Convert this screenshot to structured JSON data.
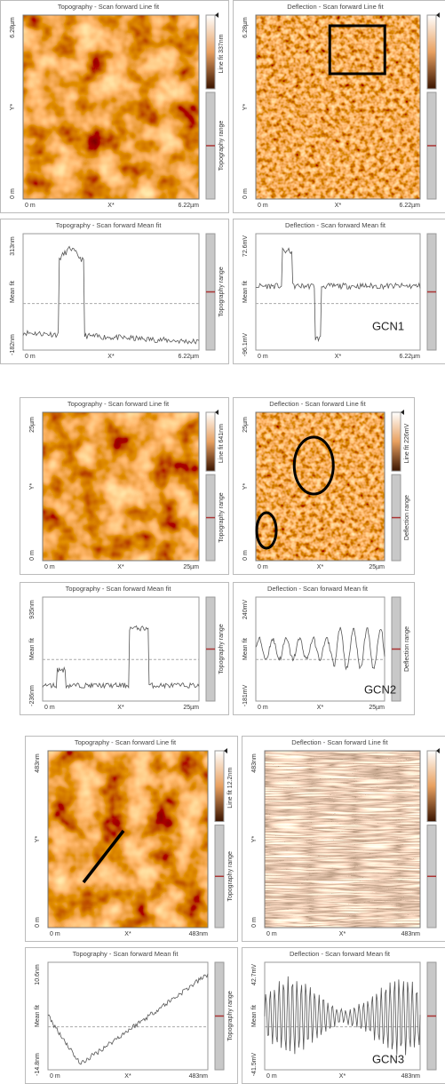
{
  "panels": [
    {
      "label": "GCN1",
      "topo_image": {
        "title": "Topography - Scan forward   Line fit",
        "y_max": "6.28µm",
        "y_axis": "Y*",
        "y_min": "0 m",
        "x_min": "0 m",
        "x_axis": "X*",
        "x_max": "6.22µm",
        "colorbar": "Line fit 337nm",
        "range": "Topography range"
      },
      "defl_image": {
        "title": "Deflection - Scan forward   Line fit",
        "y_max": "6.28µm",
        "y_axis": "Y*",
        "y_min": "0 m",
        "x_min": "0 m",
        "x_axis": "X*",
        "x_max": "6.22µm"
      },
      "topo_profile": {
        "title": "Topography - Scan forward   Mean fit",
        "y_max": "313nm",
        "y_axis": "Mean fit",
        "y_min": "-182nm",
        "x_min": "0 m",
        "x_axis": "X*",
        "x_max": "6.22µm",
        "range": "Topography range"
      },
      "defl_profile": {
        "title": "Deflection - Scan forward   Mean fit",
        "y_max": "72.6mV",
        "y_axis": "Mean fit",
        "y_min": "-96.1mV",
        "x_min": "0 m",
        "x_axis": "X*",
        "x_max": "6.22µm"
      }
    },
    {
      "label": "GCN2",
      "topo_image": {
        "title": "Topography - Scan forward   Line fit",
        "y_max": "25µm",
        "y_axis": "Y*",
        "y_min": "0 m",
        "x_min": "0 m",
        "x_axis": "X*",
        "x_max": "25µm",
        "colorbar": "Line fit 641nm",
        "range": "Topography range"
      },
      "defl_image": {
        "title": "Deflection - Scan forward   Line fit",
        "y_max": "25µm",
        "y_axis": "Y*",
        "y_min": "0 m",
        "x_min": "0 m",
        "x_axis": "X*",
        "x_max": "25µm",
        "colorbar": "Line fit 226mV",
        "range": "Deflection range"
      },
      "topo_profile": {
        "title": "Topography - Scan forward   Mean fit",
        "y_max": "935nm",
        "y_axis": "Mean fit",
        "y_min": "-236nm",
        "x_min": "0 m",
        "x_axis": "X*",
        "x_max": "25µm",
        "range": "Topography range"
      },
      "defl_profile": {
        "title": "Deflection - Scan forward   Mean fit",
        "y_max": "240mV",
        "y_axis": "Mean fit",
        "y_min": "-181mV",
        "x_min": "0 m",
        "x_axis": "X*",
        "x_max": "25µm",
        "range": "Deflection range"
      }
    },
    {
      "label": "GCN3",
      "topo_image": {
        "title": "Topography - Scan forward   Line fit",
        "y_max": "483nm",
        "y_axis": "Y*",
        "y_min": "0 m",
        "x_min": "0 m",
        "x_axis": "X*",
        "x_max": "483nm",
        "colorbar": "Line fit 12.2nm",
        "range": "Topography range"
      },
      "defl_image": {
        "title": "Deflection - Scan forward   Line fit",
        "y_max": "483nm",
        "y_axis": "Y*",
        "y_min": "0 m",
        "x_min": "0 m",
        "x_axis": "X*",
        "x_max": "483nm"
      },
      "topo_profile": {
        "title": "Topography - Scan forward   Mean fit",
        "y_max": "10.6nm",
        "y_axis": "Mean fit",
        "y_min": "-14.8nm",
        "x_min": "0 m",
        "x_axis": "X*",
        "x_max": "483nm",
        "range": "Topography range"
      },
      "defl_profile": {
        "title": "Deflection - Scan forward   Mean fit",
        "y_max": "42.7mV",
        "y_axis": "Mean fit",
        "y_min": "-41.5mV",
        "x_min": "0 m",
        "x_axis": "X*",
        "x_max": "483nm"
      }
    }
  ]
}
